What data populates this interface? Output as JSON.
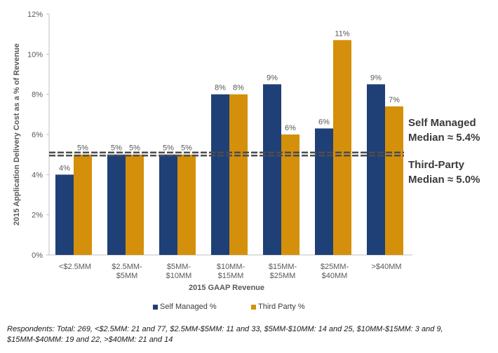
{
  "chart_data": {
    "type": "bar",
    "ylabel": "2015 Application Delivery Cost as a % of Revenue",
    "xlabel": "2015 GAAP Revenue",
    "ylim": [
      0,
      12
    ],
    "yticks": [
      "0%",
      "2%",
      "4%",
      "6%",
      "8%",
      "10%",
      "12%"
    ],
    "categories": [
      [
        "<$2.5MM"
      ],
      [
        "$2.5MM-",
        "$5MM"
      ],
      [
        "$5MM-",
        "$10MM"
      ],
      [
        "$10MM-",
        "$15MM"
      ],
      [
        "$15MM-",
        "$25MM"
      ],
      [
        "$25MM-",
        "$40MM"
      ],
      [
        ">$40MM"
      ]
    ],
    "series": [
      {
        "name": "Self Managed %",
        "color": "#1f3f77",
        "values": [
          4.0,
          5.0,
          5.0,
          8.0,
          8.5,
          6.3,
          8.5
        ],
        "labels": [
          "4%",
          "5%",
          "5%",
          "8%",
          "9%",
          "6%",
          "9%"
        ]
      },
      {
        "name": "Third Party %",
        "color": "#d4900a",
        "values": [
          5.0,
          5.0,
          5.0,
          8.0,
          6.0,
          10.7,
          7.4
        ],
        "labels": [
          "5%",
          "5%",
          "5%",
          "8%",
          "6%",
          "11%",
          "7%"
        ]
      }
    ],
    "reference_lines": [
      {
        "value": 5.1,
        "style": "dashed",
        "color": "#4d4d4d"
      },
      {
        "value": 4.95,
        "style": "dashed",
        "color": "#4d4d4d"
      }
    ],
    "grid": false,
    "legend_position": "bottom"
  },
  "annotations": {
    "self_managed": [
      "Self Managed",
      "Median ≈ 5.4%"
    ],
    "third_party": [
      "Third-Party",
      "Median ≈ 5.0%"
    ]
  },
  "legend": {
    "self_managed": "Self Managed %",
    "third_party": "Third Party %"
  },
  "footnote": "Respondents: Total: 269, <$2.5MM: 21 and 77, $2.5MM-$5MM: 11 and 33, $5MM-$10MM: 14 and 25, $10MM-$15MM: 3 and 9, $15MM-$40MM: 19 and 22, >$40MM: 21 and 14"
}
